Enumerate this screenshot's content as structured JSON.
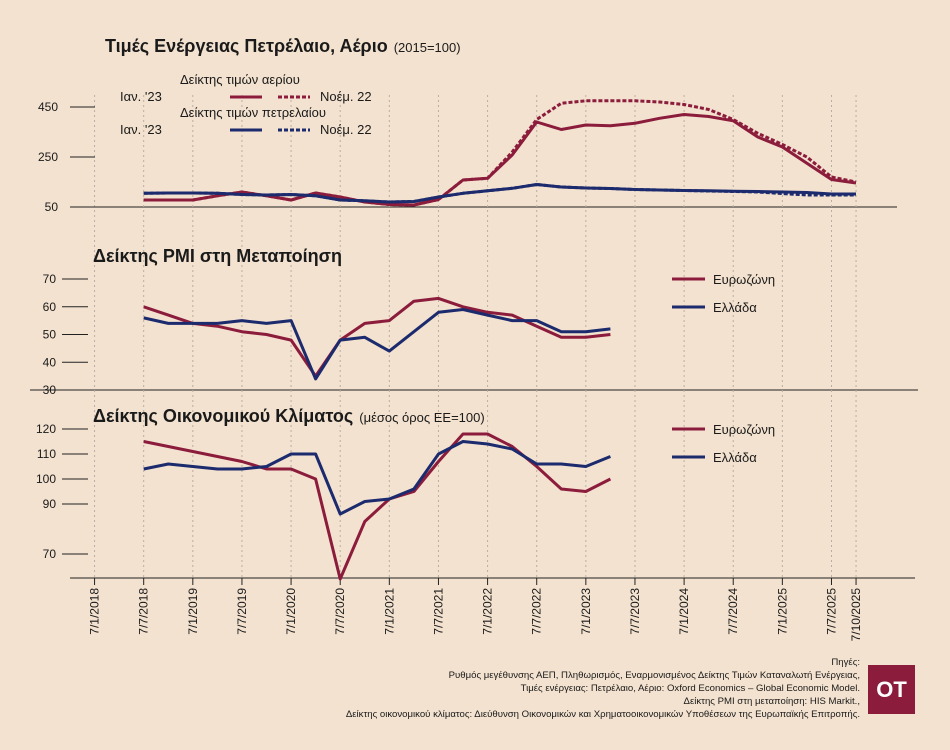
{
  "chart_data": [
    {
      "type": "line",
      "title": "Τιμές Ενέργειας Πετρέλαιο, Αέριο",
      "subtitle": "(2015=100)",
      "x": [
        2018.5,
        2018.75,
        2019,
        2019.25,
        2019.5,
        2019.75,
        2020,
        2020.25,
        2020.5,
        2020.75,
        2021,
        2021.25,
        2021.5,
        2021.75,
        2022,
        2022.25,
        2022.5,
        2022.75,
        2023,
        2023.25,
        2023.5,
        2023.75,
        2024,
        2024.25,
        2024.5,
        2024.75,
        2025,
        2025.25,
        2025.5,
        2025.75
      ],
      "xlim": [
        2017.75,
        2026.35
      ],
      "ylim": [
        50,
        500
      ],
      "yticks": [
        50,
        250,
        450
      ],
      "series_groups": [
        {
          "name": "Δείκτης τιμών αερίου",
          "series": [
            {
              "name": "Ιαν. '23",
              "color": "#8c1c3c",
              "style": "solid",
              "values": [
                78,
                78,
                78,
                95,
                110,
                95,
                78,
                106,
                90,
                70,
                60,
                58,
                80,
                158,
                165,
                258,
                390,
                360,
                378,
                375,
                385,
                405,
                420,
                412,
                395,
                330,
                290,
                225,
                160,
                146
              ]
            },
            {
              "name": "Νοέμ. 22",
              "color": "#8c1c3c",
              "style": "dotted",
              "values": [
                78,
                78,
                78,
                95,
                110,
                95,
                78,
                106,
                90,
                70,
                60,
                58,
                80,
                158,
                165,
                270,
                400,
                465,
                475,
                475,
                475,
                470,
                460,
                440,
                400,
                345,
                300,
                250,
                170,
                150
              ]
            }
          ]
        },
        {
          "name": "Δείκτης τιμών πετρελαίου",
          "series": [
            {
              "name": "Ιαν. '23",
              "color": "#1c2a6e",
              "style": "solid",
              "values": [
                105,
                106,
                106,
                105,
                100,
                98,
                100,
                95,
                78,
                75,
                70,
                72,
                90,
                105,
                115,
                125,
                140,
                130,
                126,
                124,
                120,
                118,
                116,
                115,
                113,
                112,
                110,
                108,
                102,
                102
              ]
            },
            {
              "name": "Νοέμ. 22",
              "color": "#1c2a6e",
              "style": "dotted",
              "values": [
                105,
                106,
                106,
                105,
                100,
                98,
                100,
                95,
                78,
                75,
                70,
                72,
                90,
                105,
                115,
                125,
                140,
                130,
                126,
                124,
                120,
                118,
                116,
                114,
                112,
                110,
                104,
                98,
                98,
                98
              ]
            }
          ]
        }
      ]
    },
    {
      "type": "line",
      "title": "Δείκτης PMI στη Μεταποίηση",
      "x": [
        2018.5,
        2018.75,
        2019,
        2019.25,
        2019.5,
        2019.75,
        2020,
        2020.25,
        2020.5,
        2020.75,
        2021,
        2021.25,
        2021.5,
        2021.75,
        2022,
        2022.25,
        2022.5,
        2022.75,
        2023,
        2023.25
      ],
      "xlim": [
        2017.75,
        2026.35
      ],
      "ylim": [
        30,
        70
      ],
      "yticks": [
        30,
        40,
        50,
        60,
        70
      ],
      "series": [
        {
          "name": "Ευρωζώνη",
          "color": "#8c1c3c",
          "values": [
            60,
            57,
            54,
            53,
            51,
            50,
            48,
            35,
            48,
            54,
            55,
            62,
            63,
            60,
            58,
            57,
            53,
            49,
            49,
            50
          ]
        },
        {
          "name": "Ελλάδα",
          "color": "#1c2a6e",
          "values": [
            56,
            54,
            54,
            54,
            55,
            54,
            55,
            34,
            48,
            49,
            44,
            51,
            58,
            59,
            57,
            55,
            55,
            51,
            51,
            52
          ]
        }
      ]
    },
    {
      "type": "line",
      "title": "Δείκτης Οικονομικού Κλίματος",
      "subtitle": "(μέσος όρος ΕΕ=100)",
      "x": [
        2018.5,
        2018.75,
        2019,
        2019.25,
        2019.5,
        2019.75,
        2020,
        2020.25,
        2020.5,
        2020.75,
        2021,
        2021.25,
        2021.5,
        2021.75,
        2022,
        2022.25,
        2022.5,
        2022.75,
        2023,
        2023.25
      ],
      "xlim": [
        2017.75,
        2026.35
      ],
      "ylim": [
        60,
        120
      ],
      "yticks": [
        70,
        90,
        100,
        110,
        120
      ],
      "grid": true,
      "xticks": [
        {
          "value": 2018,
          "label": "7/1/2018"
        },
        {
          "value": 2018.5,
          "label": "7/7/2018"
        },
        {
          "value": 2019,
          "label": "7/1/2019"
        },
        {
          "value": 2019.5,
          "label": "7/7/2019"
        },
        {
          "value": 2020,
          "label": "7/1/2020"
        },
        {
          "value": 2020.5,
          "label": "7/7/2020"
        },
        {
          "value": 2021,
          "label": "7/1/2021"
        },
        {
          "value": 2021.5,
          "label": "7/7/2021"
        },
        {
          "value": 2022,
          "label": "7/1/2022"
        },
        {
          "value": 2022.5,
          "label": "7/7/2022"
        },
        {
          "value": 2023,
          "label": "7/1/2023"
        },
        {
          "value": 2023.5,
          "label": "7/7/2023"
        },
        {
          "value": 2024,
          "label": "7/1/2024"
        },
        {
          "value": 2024.5,
          "label": "7/7/2024"
        },
        {
          "value": 2025,
          "label": "7/1/2025"
        },
        {
          "value": 2025.5,
          "label": "7/7/2025"
        },
        {
          "value": 2025.75,
          "label": "7/10/2025"
        }
      ],
      "series": [
        {
          "name": "Ευρωζώνη",
          "color": "#8c1c3c",
          "values": [
            115,
            113,
            111,
            109,
            107,
            104,
            104,
            100,
            60,
            83,
            92,
            95,
            107,
            118,
            118,
            113,
            105,
            96,
            95,
            100
          ]
        },
        {
          "name": "Ελλάδα",
          "color": "#1c2a6e",
          "values": [
            104,
            106,
            105,
            104,
            104,
            105,
            110,
            110,
            86,
            91,
            92,
            96,
            110,
            115,
            114,
            112,
            106,
            106,
            105,
            109
          ]
        }
      ]
    }
  ],
  "sources": {
    "title": "Πηγές:",
    "lines": [
      "Ρυθμός μεγέθυνσης ΑΕΠ, Πληθωρισμός, Εναρμονισμένος Δείκτης Τιμών Καταναλωτή Ενέργειας,",
      "Τιμές ενέργειας: Πετρέλαιο, Αέριο: Oxford Economics – Global Economic Model.",
      "Δείκτης PMI στη μεταποίηση: HIS Markit.,",
      "Δείκτης οικονομικού κλίματος: Διεύθυνση Οικονομικών και Χρηματοοικονομικών Υποθέσεων της Ευρωπαϊκής Επιτροπής."
    ]
  },
  "logo": "OT"
}
